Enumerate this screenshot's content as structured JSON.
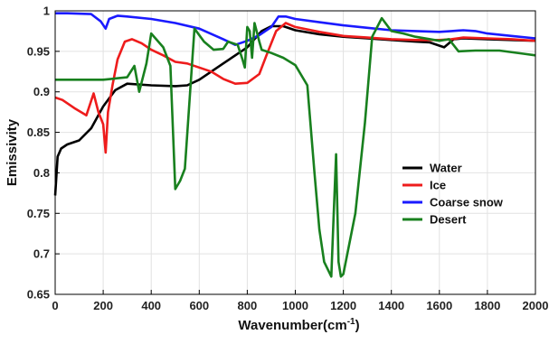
{
  "chart_data": {
    "type": "line",
    "title": "",
    "xlabel": "Wavenumber(cm",
    "xlabel_sup": "-1",
    "xlabel_suffix": ")",
    "ylabel": "Emissivity",
    "xlim": [
      0,
      2000
    ],
    "ylim": [
      0.65,
      1
    ],
    "xticks": [
      0,
      200,
      400,
      600,
      800,
      1000,
      1200,
      1400,
      1600,
      1800,
      2000
    ],
    "yticks": [
      0.65,
      0.7,
      0.75,
      0.8,
      0.85,
      0.9,
      0.95,
      1
    ],
    "ytick_labels": [
      "0.65",
      "0.7",
      "0.75",
      "0.8",
      "0.85",
      "0.9",
      "0.95",
      "1"
    ],
    "grid": true,
    "legend_position": "right",
    "series": [
      {
        "name": "Water",
        "color": "#000000",
        "points": [
          [
            0,
            0.772
          ],
          [
            10,
            0.82
          ],
          [
            25,
            0.83
          ],
          [
            50,
            0.835
          ],
          [
            100,
            0.84
          ],
          [
            150,
            0.855
          ],
          [
            200,
            0.882
          ],
          [
            250,
            0.902
          ],
          [
            300,
            0.91
          ],
          [
            400,
            0.908
          ],
          [
            500,
            0.907
          ],
          [
            550,
            0.908
          ],
          [
            600,
            0.915
          ],
          [
            700,
            0.935
          ],
          [
            800,
            0.955
          ],
          [
            860,
            0.975
          ],
          [
            900,
            0.981
          ],
          [
            950,
            0.981
          ],
          [
            1000,
            0.976
          ],
          [
            1100,
            0.971
          ],
          [
            1200,
            0.968
          ],
          [
            1300,
            0.966
          ],
          [
            1400,
            0.964
          ],
          [
            1500,
            0.962
          ],
          [
            1560,
            0.961
          ],
          [
            1620,
            0.955
          ],
          [
            1660,
            0.965
          ],
          [
            1700,
            0.966
          ],
          [
            1800,
            0.965
          ],
          [
            1900,
            0.964
          ],
          [
            2000,
            0.963
          ]
        ]
      },
      {
        "name": "Ice",
        "color": "#ee1c1c",
        "points": [
          [
            0,
            0.893
          ],
          [
            30,
            0.89
          ],
          [
            80,
            0.88
          ],
          [
            130,
            0.871
          ],
          [
            160,
            0.898
          ],
          [
            180,
            0.875
          ],
          [
            200,
            0.86
          ],
          [
            210,
            0.825
          ],
          [
            220,
            0.875
          ],
          [
            240,
            0.91
          ],
          [
            260,
            0.94
          ],
          [
            290,
            0.962
          ],
          [
            320,
            0.965
          ],
          [
            360,
            0.96
          ],
          [
            400,
            0.952
          ],
          [
            450,
            0.945
          ],
          [
            500,
            0.937
          ],
          [
            550,
            0.935
          ],
          [
            600,
            0.93
          ],
          [
            650,
            0.925
          ],
          [
            700,
            0.916
          ],
          [
            750,
            0.91
          ],
          [
            800,
            0.911
          ],
          [
            850,
            0.922
          ],
          [
            880,
            0.945
          ],
          [
            920,
            0.975
          ],
          [
            960,
            0.985
          ],
          [
            1000,
            0.98
          ],
          [
            1100,
            0.974
          ],
          [
            1200,
            0.969
          ],
          [
            1300,
            0.967
          ],
          [
            1400,
            0.965
          ],
          [
            1500,
            0.964
          ],
          [
            1600,
            0.964
          ],
          [
            1650,
            0.965
          ],
          [
            1700,
            0.967
          ],
          [
            1800,
            0.966
          ],
          [
            1900,
            0.965
          ],
          [
            2000,
            0.963
          ]
        ]
      },
      {
        "name": "Coarse snow",
        "color": "#1a1aff",
        "points": [
          [
            0,
            0.997
          ],
          [
            50,
            0.997
          ],
          [
            150,
            0.996
          ],
          [
            190,
            0.987
          ],
          [
            210,
            0.978
          ],
          [
            225,
            0.99
          ],
          [
            260,
            0.994
          ],
          [
            300,
            0.993
          ],
          [
            400,
            0.99
          ],
          [
            500,
            0.985
          ],
          [
            600,
            0.978
          ],
          [
            700,
            0.965
          ],
          [
            750,
            0.958
          ],
          [
            800,
            0.963
          ],
          [
            850,
            0.97
          ],
          [
            900,
            0.98
          ],
          [
            930,
            0.993
          ],
          [
            960,
            0.993
          ],
          [
            1000,
            0.99
          ],
          [
            1100,
            0.986
          ],
          [
            1200,
            0.982
          ],
          [
            1300,
            0.979
          ],
          [
            1400,
            0.976
          ],
          [
            1500,
            0.975
          ],
          [
            1600,
            0.974
          ],
          [
            1650,
            0.975
          ],
          [
            1700,
            0.976
          ],
          [
            1750,
            0.975
          ],
          [
            1800,
            0.972
          ],
          [
            1900,
            0.969
          ],
          [
            2000,
            0.966
          ]
        ]
      },
      {
        "name": "Desert",
        "color": "#18801e",
        "points": [
          [
            0,
            0.915
          ],
          [
            100,
            0.915
          ],
          [
            200,
            0.915
          ],
          [
            300,
            0.918
          ],
          [
            330,
            0.932
          ],
          [
            350,
            0.9
          ],
          [
            380,
            0.935
          ],
          [
            400,
            0.972
          ],
          [
            450,
            0.955
          ],
          [
            480,
            0.932
          ],
          [
            500,
            0.78
          ],
          [
            520,
            0.79
          ],
          [
            540,
            0.805
          ],
          [
            580,
            0.978
          ],
          [
            620,
            0.962
          ],
          [
            660,
            0.952
          ],
          [
            700,
            0.953
          ],
          [
            720,
            0.962
          ],
          [
            760,
            0.958
          ],
          [
            780,
            0.94
          ],
          [
            790,
            0.93
          ],
          [
            800,
            0.98
          ],
          [
            810,
            0.975
          ],
          [
            820,
            0.942
          ],
          [
            830,
            0.985
          ],
          [
            850,
            0.962
          ],
          [
            860,
            0.952
          ],
          [
            900,
            0.948
          ],
          [
            950,
            0.942
          ],
          [
            1000,
            0.933
          ],
          [
            1050,
            0.908
          ],
          [
            1080,
            0.8
          ],
          [
            1100,
            0.73
          ],
          [
            1120,
            0.69
          ],
          [
            1150,
            0.672
          ],
          [
            1160,
            0.75
          ],
          [
            1170,
            0.823
          ],
          [
            1180,
            0.69
          ],
          [
            1190,
            0.672
          ],
          [
            1200,
            0.675
          ],
          [
            1250,
            0.75
          ],
          [
            1290,
            0.862
          ],
          [
            1320,
            0.968
          ],
          [
            1360,
            0.991
          ],
          [
            1400,
            0.975
          ],
          [
            1450,
            0.972
          ],
          [
            1500,
            0.968
          ],
          [
            1600,
            0.963
          ],
          [
            1640,
            0.965
          ],
          [
            1680,
            0.95
          ],
          [
            1750,
            0.951
          ],
          [
            1850,
            0.951
          ],
          [
            1950,
            0.947
          ],
          [
            2000,
            0.945
          ]
        ]
      }
    ]
  }
}
